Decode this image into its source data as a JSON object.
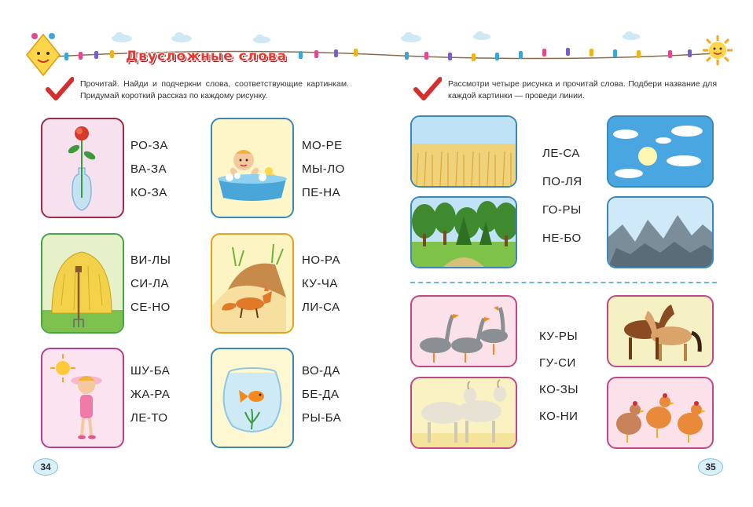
{
  "header": {
    "title": "Двусложные слова"
  },
  "left_page": {
    "instruction": "Прочитай. Найди и подчеркни слова, соответствующие картинкам. Придумай короткий рассказ по каждому рисунку.",
    "cards": [
      {
        "picture": "rose-in-vase",
        "words": [
          "РО-ЗА",
          "ВА-ЗА",
          "КО-ЗА"
        ],
        "border": "#9a2a45",
        "bg": "#f7e1ee"
      },
      {
        "picture": "baby-in-bath",
        "words": [
          "МО-РЕ",
          "МЫ-ЛО",
          "ПЕ-НА"
        ],
        "border": "#3a87b8",
        "bg": "#fcf6c8"
      },
      {
        "picture": "haystack",
        "words": [
          "ВИ-ЛЫ",
          "СИ-ЛА",
          "СЕ-НО"
        ],
        "border": "#4aa34a",
        "bg": "#e6f1c9"
      },
      {
        "picture": "fox",
        "words": [
          "НО-РА",
          "КУ-ЧА",
          "ЛИ-СА"
        ],
        "border": "#e6a21a",
        "bg": "#fcf4c2"
      },
      {
        "picture": "girl-in-sun",
        "words": [
          "ШУ-БА",
          "ЖА-РА",
          "ЛЕ-ТО"
        ],
        "border": "#b83e86",
        "bg": "#fbe4ef"
      },
      {
        "picture": "goldfish-bowl",
        "words": [
          "ВО-ДА",
          "БЕ-ДА",
          "РЫ-БА"
        ],
        "border": "#3a87b8",
        "bg": "#fdf7d2"
      }
    ],
    "page_number": "34"
  },
  "right_page": {
    "instruction": "Рассмотри четыре рисунка и прочитай слова. Подбери название для каждой картинки — проведи линии.",
    "group1_words": [
      "ЛЕ-СА",
      "ПО-ЛЯ",
      "ГО-РЫ",
      "НЕ-БО"
    ],
    "group2_words": [
      "КУ-РЫ",
      "ГУ-СИ",
      "КО-ЗЫ",
      "КО-НИ"
    ],
    "pictures": [
      "wheat-field",
      "sky-with-sun",
      "forest",
      "mountains",
      "geese",
      "horses",
      "goats",
      "hens"
    ],
    "page_number": "35"
  },
  "colors": {
    "accent_red": "#e53935",
    "frame_blue": "#3a87b8",
    "frame_pink": "#c24789",
    "divider": "#6ab7d6"
  }
}
